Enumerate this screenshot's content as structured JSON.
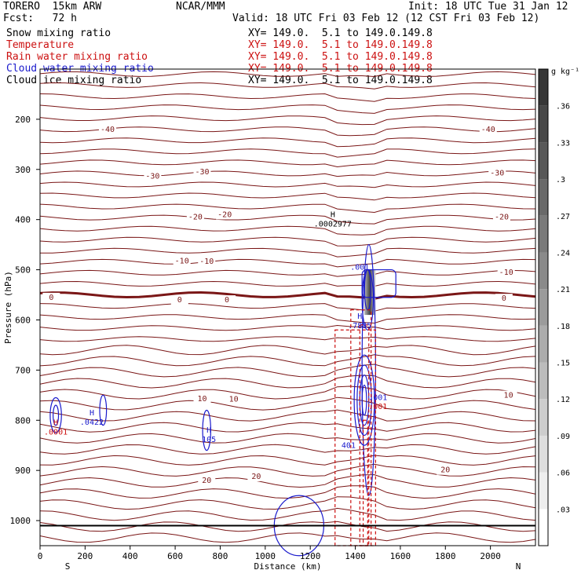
{
  "header": {
    "model": "TORERO  15km ARW",
    "center": "NCAR/MMM",
    "init": "Init: 18 UTC Tue 31 Jan 12",
    "fcst": "Fcst:   72 h",
    "valid": "Valid: 18 UTC Fri 03 Feb 12 (12 CST Fri 03 Feb 12)"
  },
  "fields": [
    {
      "name": "Snow mixing ratio",
      "xy": "XY= 149.0.  5.1 to 149.0.149.8",
      "color": "#000000"
    },
    {
      "name": "Temperature",
      "xy": "XY= 149.0.  5.1 to 149.0.149.8",
      "color": "#cc1111"
    },
    {
      "name": "Rain water mixing ratio",
      "xy": "XY= 149.0.  5.1 to 149.0.149.8",
      "color": "#cc1111"
    },
    {
      "name": "Cloud water mixing ratio",
      "xy": "XY= 149.0.  5.1 to 149.0.149.8",
      "color": "#1a1acc"
    },
    {
      "name": "Cloud ice mixing ratio",
      "xy": "XY= 149.0.  5.1 to 149.0.149.8",
      "color": "#000000"
    }
  ],
  "chart_data": {
    "type": "contour",
    "xlabel": "Distance (km)",
    "ylabel": "Pressure (hPa)",
    "xlim": [
      0,
      2200
    ],
    "ylim": [
      1050,
      100
    ],
    "x_ticks": [
      0,
      200,
      400,
      600,
      800,
      1000,
      1200,
      1400,
      1600,
      1800,
      2000
    ],
    "y_ticks": [
      200,
      300,
      400,
      500,
      600,
      700,
      800,
      900,
      1000
    ],
    "x_end_labels": {
      "left": "S",
      "right": "N"
    },
    "colorbar": {
      "unit": "g kg⁻¹",
      "ticks": [
        ".03",
        ".06",
        ".09",
        ".12",
        ".15",
        ".18",
        ".21",
        ".24",
        ".27",
        ".3",
        ".33",
        ".36"
      ]
    },
    "temperature_labels": [
      {
        "text": "-40",
        "x": 300,
        "p": 225
      },
      {
        "text": "-40",
        "x": 1990,
        "p": 225
      },
      {
        "text": "-30",
        "x": 500,
        "p": 318
      },
      {
        "text": "-30",
        "x": 720,
        "p": 310
      },
      {
        "text": "-30",
        "x": 2030,
        "p": 312
      },
      {
        "text": "-20",
        "x": 690,
        "p": 400
      },
      {
        "text": "-20",
        "x": 820,
        "p": 395
      },
      {
        "text": "-20",
        "x": 2050,
        "p": 400
      },
      {
        "text": "-10",
        "x": 630,
        "p": 487
      },
      {
        "text": "-10",
        "x": 740,
        "p": 488
      },
      {
        "text": "-10",
        "x": 2070,
        "p": 510
      },
      {
        "text": "0",
        "x": 50,
        "p": 560
      },
      {
        "text": "0",
        "x": 620,
        "p": 565
      },
      {
        "text": "0",
        "x": 830,
        "p": 565
      },
      {
        "text": "0",
        "x": 2060,
        "p": 562
      },
      {
        "text": "10",
        "x": 720,
        "p": 762
      },
      {
        "text": "10",
        "x": 860,
        "p": 763
      },
      {
        "text": "10",
        "x": 2080,
        "p": 755
      },
      {
        "text": "20",
        "x": 740,
        "p": 925
      },
      {
        "text": "20",
        "x": 960,
        "p": 917
      },
      {
        "text": "20",
        "x": 1800,
        "p": 904
      }
    ],
    "max_labels": [
      {
        "mark": "H",
        "value": ".0002977",
        "x": 1300,
        "p": 395,
        "color": "#000000"
      },
      {
        "mark": "H",
        "value": ".7885",
        "x": 1420,
        "p": 598,
        "color": "#1a1acc"
      },
      {
        "mark": "H",
        "value": ".0422",
        "x": 230,
        "p": 790,
        "color": "#1a1acc"
      },
      {
        "mark": "H",
        "value": ".0001",
        "x": 70,
        "p": 810,
        "color": "#cc1111"
      },
      {
        "mark": "H",
        "value": "105",
        "x": 750,
        "p": 825,
        "color": "#1a1acc"
      },
      {
        "mark": "",
        "value": ".001",
        "x": 1420,
        "p": 500,
        "color": "#1a1acc"
      },
      {
        "mark": "",
        "value": ".001",
        "x": 1500,
        "p": 760,
        "color": "#1a1acc"
      },
      {
        "mark": "",
        "value": ".001",
        "x": 1500,
        "p": 778,
        "color": "#cc1111"
      },
      {
        "mark": "",
        "value": "401",
        "x": 1370,
        "p": 855,
        "color": "#1a1acc"
      }
    ]
  }
}
